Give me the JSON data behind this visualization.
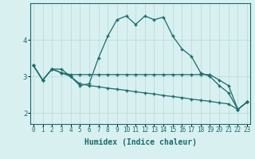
{
  "xlabel": "Humidex (Indice chaleur)",
  "background_color": "#d9f0f0",
  "grid_color": "#c0dede",
  "line_color": "#1a6b6b",
  "x_values": [
    0,
    1,
    2,
    3,
    4,
    5,
    6,
    7,
    8,
    9,
    10,
    11,
    12,
    13,
    14,
    15,
    16,
    17,
    18,
    19,
    20,
    21,
    22,
    23
  ],
  "series": [
    [
      3.3,
      2.9,
      3.2,
      3.2,
      3.0,
      2.75,
      2.8,
      3.5,
      4.1,
      4.55,
      4.65,
      4.42,
      4.65,
      4.55,
      4.62,
      4.1,
      3.75,
      3.55,
      3.1,
      3.0,
      2.75,
      2.55,
      2.1,
      2.3
    ],
    [
      3.3,
      2.9,
      3.2,
      3.1,
      3.05,
      3.05,
      3.05,
      3.05,
      3.05,
      3.05,
      3.05,
      3.05,
      3.05,
      3.05,
      3.05,
      3.05,
      3.05,
      3.05,
      3.05,
      3.05,
      2.9,
      2.75,
      2.1,
      2.3
    ],
    [
      3.3,
      2.9,
      3.2,
      3.1,
      3.0,
      2.8,
      2.75,
      2.72,
      2.68,
      2.65,
      2.62,
      2.58,
      2.55,
      2.52,
      2.48,
      2.45,
      2.42,
      2.38,
      2.35,
      2.32,
      2.28,
      2.25,
      2.1,
      2.3
    ]
  ],
  "ylim": [
    1.7,
    5.0
  ],
  "xlim": [
    -0.3,
    23.3
  ],
  "yticks": [
    2,
    3,
    4
  ],
  "xticks": [
    0,
    1,
    2,
    3,
    4,
    5,
    6,
    7,
    8,
    9,
    10,
    11,
    12,
    13,
    14,
    15,
    16,
    17,
    18,
    19,
    20,
    21,
    22,
    23
  ],
  "tick_fontsize": 5.5,
  "label_fontsize": 7
}
